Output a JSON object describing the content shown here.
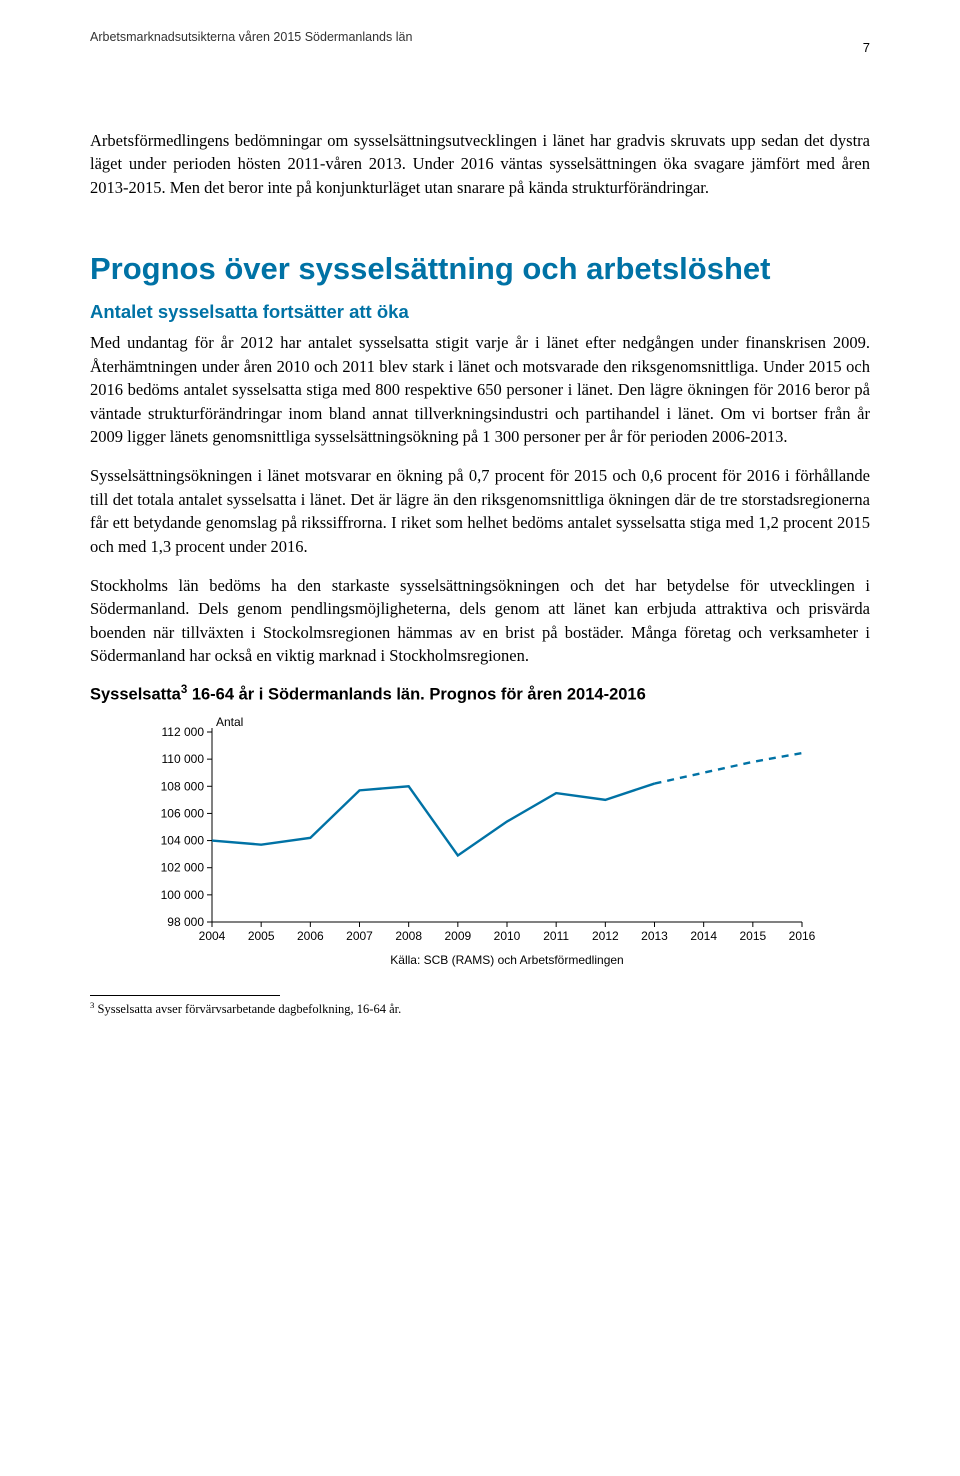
{
  "header": {
    "text": "Arbetsmarknadsutsikterna våren 2015 Södermanlands län",
    "page_number": "7"
  },
  "intro_paragraph": "Arbetsförmedlingens bedömningar om sysselsättningsutvecklingen i länet har gradvis skruvats upp sedan det dystra läget under perioden hösten 2011-våren 2013. Under 2016 väntas sysselsättningen öka svagare jämfört med åren 2013-2015. Men det beror inte på konjunkturläget utan snarare på kända strukturförändringar.",
  "section_title": "Prognos över sysselsättning och arbetslöshet",
  "subsection_title": "Antalet sysselsatta fortsätter att öka",
  "paragraphs": [
    "Med undantag för år 2012 har antalet sysselsatta stigit varje år i länet efter nedgången under finanskrisen 2009. Återhämtningen under åren 2010 och 2011 blev stark i länet och motsvarade den riksgenomsnittliga. Under 2015 och 2016 bedöms antalet sysselsatta stiga med 800 respektive 650 personer i länet. Den lägre ökningen för 2016 beror på väntade strukturförändringar inom bland annat tillverkningsindustri och partihandel i länet. Om vi bortser från år 2009 ligger länets genomsnittliga sysselsättningsökning på 1 300 personer per år för perioden 2006-2013.",
    "Sysselsättningsökningen i länet motsvarar en ökning på 0,7 procent för 2015 och 0,6 procent för 2016 i förhållande till det totala antalet sysselsatta i länet. Det är lägre än den riksgenomsnittliga ökningen där de tre storstadsregionerna får ett betydande genomslag på rikssiffrorna. I riket som helhet bedöms antalet sysselsatta stiga med 1,2 procent 2015 och med 1,3 procent under 2016.",
    "Stockholms län bedöms ha den starkaste sysselsättningsökningen och det har betydelse för utvecklingen i Södermanland. Dels genom pendlingsmöjligheterna, dels genom att länet kan erbjuda attraktiva och prisvärda boenden när tillväxten i Stockolmsregionen hämmas av en brist på bostäder. Många företag och verksamheter i Södermanland har också en viktig marknad i Stockholmsregionen."
  ],
  "chart": {
    "type": "line",
    "title_pre": "Sysselsatta",
    "title_sup": "3",
    "title_post": " 16-64 år i Södermanlands län. Prognos för åren 2014-2016",
    "y_axis_title": "Antal",
    "x_categories": [
      "2004",
      "2005",
      "2006",
      "2007",
      "2008",
      "2009",
      "2010",
      "2011",
      "2012",
      "2013",
      "2014",
      "2015",
      "2016"
    ],
    "y_ticks": [
      98000,
      100000,
      102000,
      104000,
      106000,
      108000,
      110000,
      112000
    ],
    "y_tick_labels": [
      "98 000",
      "100 000",
      "102 000",
      "104 000",
      "106 000",
      "108 000",
      "110 000",
      "112 000"
    ],
    "ylim": [
      98000,
      112000
    ],
    "solid_values": [
      104000,
      103700,
      104200,
      107700,
      108000,
      102900,
      105400,
      107500,
      107000,
      108200
    ],
    "dashed_values": [
      108200,
      109000,
      109800,
      110450
    ],
    "dashed_start_index": 9,
    "line_color": "#0072a5",
    "line_width": 2.4,
    "axis_color": "#000000",
    "tick_color": "#000000",
    "background_color": "#ffffff",
    "source_text": "Källa: SCB (RAMS) och Arbetsförmedlingen",
    "font_family": "Arial",
    "label_fontsize": 12
  },
  "footnote": {
    "marker": "3",
    "text": " Sysselsatta avser förvärvsarbetande dagbefolkning, 16-64 år."
  }
}
